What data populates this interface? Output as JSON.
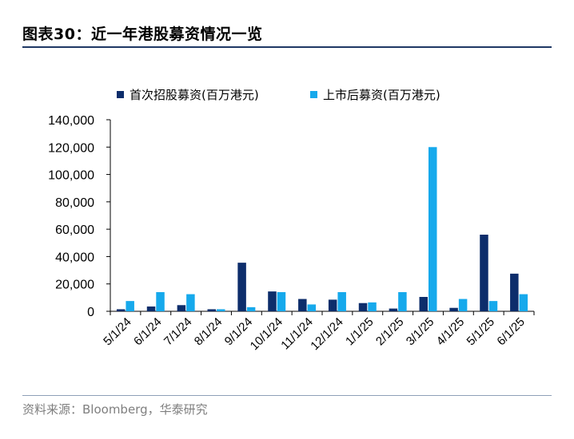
{
  "title": "图表30：近一年港股募资情况一览",
  "source": "资料来源：Bloomberg，华泰研究",
  "colors": {
    "ipo": "#0d2d6b",
    "post": "#16a9ec",
    "rule": "#1f3864"
  },
  "chart_data": {
    "type": "bar",
    "categories": [
      "5/1/24",
      "6/1/24",
      "7/1/24",
      "8/1/24",
      "9/1/24",
      "10/1/24",
      "11/1/24",
      "12/1/24",
      "1/1/25",
      "2/1/25",
      "3/1/25",
      "4/1/25",
      "5/1/25",
      "6/1/25"
    ],
    "series": [
      {
        "name": "首次招股募资(百万港元)",
        "values": [
          1500,
          3500,
          4500,
          1500,
          35500,
          14500,
          9000,
          8500,
          6000,
          2000,
          10500,
          2500,
          56000,
          27500
        ]
      },
      {
        "name": "上市后募资(百万港元)",
        "values": [
          7500,
          14000,
          12500,
          1500,
          3000,
          14000,
          5000,
          14000,
          6500,
          14000,
          120000,
          9000,
          7500,
          12500
        ]
      }
    ],
    "yticks": [
      "0",
      "20,000",
      "40,000",
      "60,000",
      "80,000",
      "100,000",
      "120,000",
      "140,000"
    ],
    "ylim": [
      0,
      140000
    ],
    "legend": "top",
    "grid": false
  }
}
